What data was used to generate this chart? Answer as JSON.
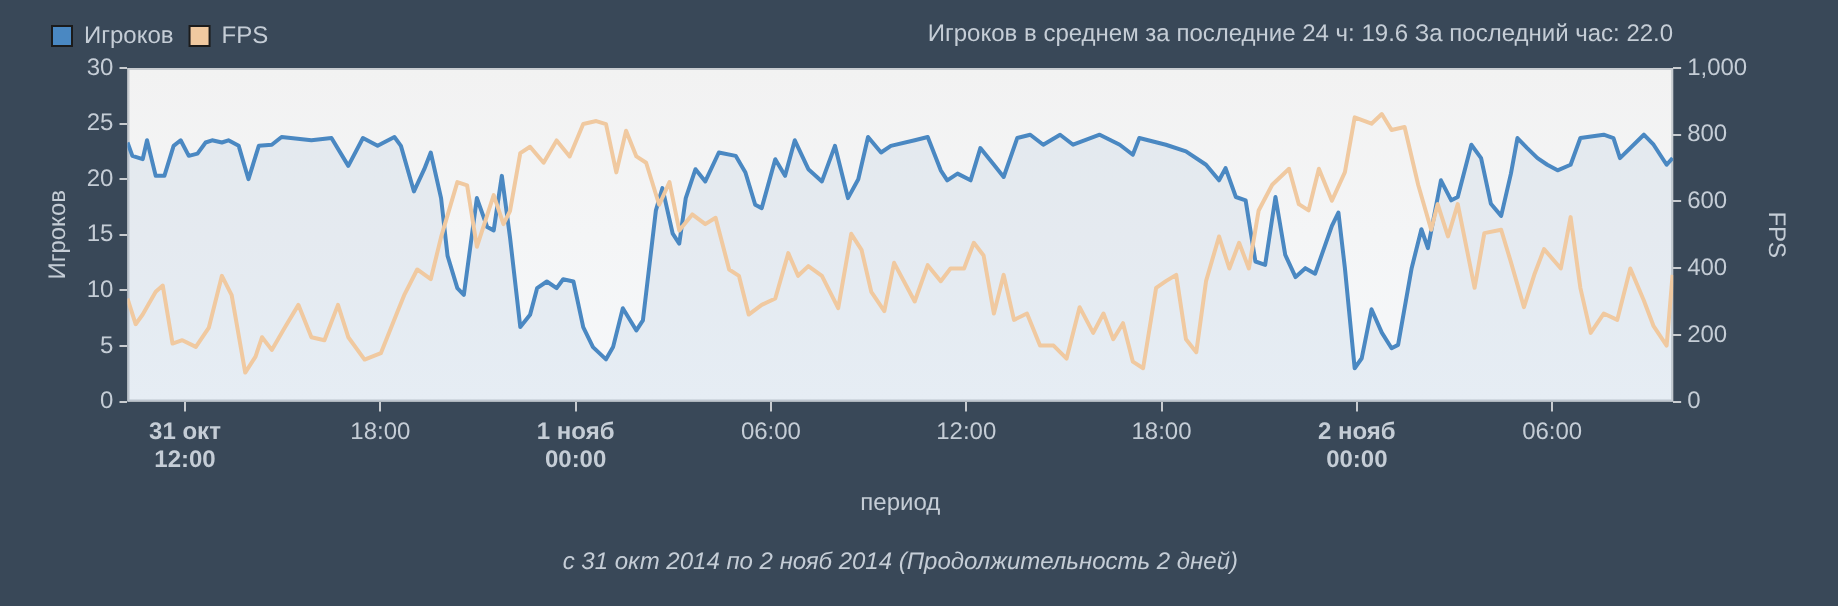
{
  "chart_data": {
    "type": "line",
    "xlabel": "период",
    "ylabel": "Игроков",
    "y2label": "FPS",
    "annotations": [
      "Игроков в среднем за последние 24 ч: 19.6 За последний час: 22.0",
      "с 31 окт 2014 по 2 нояб 2014 (Продолжительность 2 дней)"
    ],
    "xlim": [
      "2014-10-31T10:14",
      "2014-11-02T09:43"
    ],
    "xticks": [
      {
        "value": "2014-10-31T12:00",
        "label": "31 окт\n12:00"
      },
      {
        "value": "2014-10-31T18:00",
        "label": "18:00"
      },
      {
        "value": "2014-11-01T00:00",
        "label": "1 нояб\n00:00"
      },
      {
        "value": "2014-11-01T06:00",
        "label": "06:00"
      },
      {
        "value": "2014-11-01T12:00",
        "label": "12:00"
      },
      {
        "value": "2014-11-01T18:00",
        "label": "18:00"
      },
      {
        "value": "2014-11-02T00:00",
        "label": "2 нояб\n00:00"
      },
      {
        "value": "2014-11-02T06:00",
        "label": "06:00"
      }
    ],
    "ylim": [
      0,
      30
    ],
    "yticks": [
      0,
      5,
      10,
      15,
      20,
      25,
      30
    ],
    "y2lim": [
      0,
      1000
    ],
    "y2ticks": [
      0,
      200,
      400,
      600,
      800,
      {
        "value": 1000,
        "label": "1,000"
      }
    ],
    "legend": "top left",
    "grid": false,
    "marker": "none",
    "line_style": "solid",
    "series": [
      {
        "name": "Игроков",
        "type": "area",
        "color": "#4a88c2",
        "x": [
          "2014-10-31T10:14",
          "2014-10-31T10:23",
          "2014-10-31T10:42",
          "2014-10-31T10:50",
          "2014-10-31T11:06",
          "2014-10-31T11:22",
          "2014-10-31T11:39",
          "2014-10-31T11:52",
          "2014-10-31T12:07",
          "2014-10-31T12:23",
          "2014-10-31T12:38",
          "2014-10-31T12:50",
          "2014-10-31T13:08",
          "2014-10-31T13:20",
          "2014-10-31T13:39",
          "2014-10-31T13:57",
          "2014-10-31T14:16",
          "2014-10-31T14:40",
          "2014-10-31T14:58",
          "2014-10-31T15:53",
          "2014-10-31T16:30",
          "2014-10-31T17:01",
          "2014-10-31T17:28",
          "2014-10-31T17:55",
          "2014-10-31T18:26",
          "2014-10-31T18:38",
          "2014-10-31T19:02",
          "2014-10-31T19:21",
          "2014-10-31T19:33",
          "2014-10-31T19:52",
          "2014-10-31T20:04",
          "2014-10-31T20:22",
          "2014-10-31T20:34",
          "2014-10-31T20:58",
          "2014-10-31T21:17",
          "2014-10-31T21:29",
          "2014-10-31T21:44",
          "2014-10-31T21:59",
          "2014-10-31T22:18",
          "2014-10-31T22:36",
          "2014-10-31T22:49",
          "2014-10-31T23:07",
          "2014-10-31T23:25",
          "2014-10-31T23:37",
          "2014-10-31T23:56",
          "2014-11-01T00:14",
          "2014-11-01T00:32",
          "2014-11-01T00:56",
          "2014-11-01T01:09",
          "2014-11-01T01:27",
          "2014-11-01T01:52",
          "2014-11-01T02:04",
          "2014-11-01T02:28",
          "2014-11-01T02:40",
          "2014-11-01T02:59",
          "2014-11-01T03:11",
          "2014-11-01T03:23",
          "2014-11-01T03:41",
          "2014-11-01T03:59",
          "2014-11-01T04:24",
          "2014-11-01T04:55",
          "2014-11-01T05:13",
          "2014-11-01T05:31",
          "2014-11-01T05:43",
          "2014-11-01T06:08",
          "2014-11-01T06:26",
          "2014-11-01T06:44",
          "2014-11-01T07:09",
          "2014-11-01T07:34",
          "2014-11-01T07:58",
          "2014-11-01T08:22",
          "2014-11-01T08:41",
          "2014-11-01T08:59",
          "2014-11-01T09:23",
          "2014-11-01T09:41",
          "2014-11-01T10:25",
          "2014-11-01T10:49",
          "2014-11-01T11:13",
          "2014-11-01T11:25",
          "2014-11-01T11:44",
          "2014-11-01T12:08",
          "2014-11-01T12:26",
          "2014-11-01T12:51",
          "2014-11-01T13:09",
          "2014-11-01T13:34",
          "2014-11-01T13:58",
          "2014-11-01T14:22",
          "2014-11-01T14:53",
          "2014-11-01T15:17",
          "2014-11-01T16:06",
          "2014-11-01T16:43",
          "2014-11-01T17:07",
          "2014-11-01T17:19",
          "2014-11-01T18:08",
          "2014-11-01T18:45",
          "2014-11-01T19:22",
          "2014-11-01T19:46",
          "2014-11-01T19:58",
          "2014-11-01T20:17",
          "2014-11-01T20:35",
          "2014-11-01T20:53",
          "2014-11-01T21:11",
          "2014-11-01T21:30",
          "2014-11-01T21:48",
          "2014-11-01T22:07",
          "2014-11-01T22:25",
          "2014-11-01T22:43",
          "2014-11-01T23:14",
          "2014-11-01T23:26",
          "2014-11-01T23:38",
          "2014-11-01T23:56",
          "2014-11-02T00:09",
          "2014-11-02T00:27",
          "2014-11-02T00:46",
          "2014-11-02T01:04",
          "2014-11-02T01:16",
          "2014-11-02T01:41",
          "2014-11-02T01:59",
          "2014-11-02T02:11",
          "2014-11-02T02:35",
          "2014-11-02T02:54",
          "2014-11-02T03:06",
          "2014-11-02T03:31",
          "2014-11-02T03:49",
          "2014-11-02T04:07",
          "2014-11-02T04:26",
          "2014-11-02T04:44",
          "2014-11-02T04:56",
          "2014-11-02T05:14",
          "2014-11-02T05:33",
          "2014-11-02T05:51",
          "2014-11-02T06:10",
          "2014-11-02T06:34",
          "2014-11-02T06:52",
          "2014-11-02T07:35",
          "2014-11-02T07:53",
          "2014-11-02T08:05",
          "2014-11-02T08:49",
          "2014-11-02T09:07",
          "2014-11-02T09:31",
          "2014-11-02T09:42"
        ],
        "values": [
          23.3,
          22.1,
          21.8,
          23.5,
          20.3,
          20.3,
          23,
          23.5,
          22.1,
          22.3,
          23.3,
          23.5,
          23.3,
          23.5,
          23,
          20,
          23,
          23.1,
          23.8,
          23.5,
          23.7,
          21.2,
          23.7,
          23,
          23.8,
          23,
          18.9,
          20.9,
          22.4,
          18.3,
          13.1,
          10.2,
          9.6,
          18.3,
          15.7,
          15.4,
          20.3,
          14.8,
          6.7,
          7.8,
          10.2,
          10.8,
          10.2,
          11,
          10.8,
          6.7,
          4.9,
          3.8,
          4.9,
          8.4,
          6.4,
          7.3,
          17.2,
          19.2,
          15.1,
          14.2,
          18.3,
          20.9,
          19.8,
          22.4,
          22.1,
          20.6,
          17.7,
          17.4,
          21.8,
          20.3,
          23.5,
          20.9,
          19.8,
          23,
          18.3,
          20,
          23.8,
          22.4,
          23,
          23.5,
          23.8,
          20.8,
          19.9,
          20.5,
          19.9,
          22.8,
          21.3,
          20.2,
          23.7,
          24,
          23.1,
          24,
          23.1,
          24,
          23.1,
          22.2,
          23.7,
          23.1,
          22.5,
          21.3,
          19.9,
          21,
          18.4,
          18.1,
          12.6,
          12.3,
          18.4,
          13.2,
          11.2,
          12,
          11.5,
          15.8,
          17,
          12,
          3,
          3.9,
          8.3,
          6.2,
          4.8,
          5.1,
          12,
          15.5,
          13.8,
          19.9,
          18.1,
          18.4,
          23.1,
          21.9,
          17.8,
          16.7,
          20.5,
          23.7,
          22.8,
          21.9,
          21.3,
          20.8,
          21.3,
          23.7,
          24,
          23.7,
          21.9,
          24,
          23.1,
          21.3,
          21.9
        ]
      },
      {
        "name": "FPS",
        "axis": "y2",
        "color": "#f0c9a0",
        "x": [
          "2014-10-31T10:14",
          "2014-10-31T10:29",
          "2014-10-31T10:42",
          "2014-10-31T11:06",
          "2014-10-31T11:19",
          "2014-10-31T11:37",
          "2014-10-31T11:55",
          "2014-10-31T12:20",
          "2014-10-31T12:44",
          "2014-10-31T13:08",
          "2014-10-31T13:26",
          "2014-10-31T13:51",
          "2014-10-31T14:10",
          "2014-10-31T14:22",
          "2014-10-31T14:40",
          "2014-10-31T15:04",
          "2014-10-31T15:29",
          "2014-10-31T15:53",
          "2014-10-31T16:17",
          "2014-10-31T16:42",
          "2014-10-31T17:01",
          "2014-10-31T17:31",
          "2014-10-31T18:01",
          "2014-10-31T18:32",
          "2014-10-31T18:44",
          "2014-10-31T19:08",
          "2014-10-31T19:33",
          "2014-10-31T19:52",
          "2014-10-31T20:22",
          "2014-10-31T20:40",
          "2014-10-31T20:58",
          "2014-10-31T21:29",
          "2014-10-31T21:47",
          "2014-10-31T21:59",
          "2014-10-31T22:18",
          "2014-10-31T22:36",
          "2014-10-31T23:01",
          "2014-10-31T23:25",
          "2014-10-31T23:49",
          "2014-11-01T00:14",
          "2014-11-01T00:38",
          "2014-11-01T00:56",
          "2014-11-01T01:15",
          "2014-11-01T01:33",
          "2014-11-01T01:52",
          "2014-11-01T02:10",
          "2014-11-01T02:34",
          "2014-11-01T02:53",
          "2014-11-01T03:11",
          "2014-11-01T03:35",
          "2014-11-01T03:59",
          "2014-11-01T04:18",
          "2014-11-01T04:43",
          "2014-11-01T05:01",
          "2014-11-01T05:19",
          "2014-11-01T05:43",
          "2014-11-01T06:08",
          "2014-11-01T06:32",
          "2014-11-01T06:50",
          "2014-11-01T07:09",
          "2014-11-01T07:34",
          "2014-11-01T08:04",
          "2014-11-01T08:28",
          "2014-11-01T08:47",
          "2014-11-01T09:05",
          "2014-11-01T09:29",
          "2014-11-01T09:47",
          "2014-11-01T10:25",
          "2014-11-01T10:49",
          "2014-11-01T11:13",
          "2014-11-01T11:31",
          "2014-11-01T11:56",
          "2014-11-01T12:14",
          "2014-11-01T12:32",
          "2014-11-01T12:51",
          "2014-11-01T13:09",
          "2014-11-01T13:28",
          "2014-11-01T13:52",
          "2014-11-01T14:16",
          "2014-11-01T14:41",
          "2014-11-01T15:05",
          "2014-11-01T15:29",
          "2014-11-01T15:54",
          "2014-11-01T16:13",
          "2014-11-01T16:31",
          "2014-11-01T16:49",
          "2014-11-01T17:07",
          "2014-11-01T17:26",
          "2014-11-01T17:50",
          "2014-11-01T18:08",
          "2014-11-01T18:27",
          "2014-11-01T18:45",
          "2014-11-01T19:04",
          "2014-11-01T19:22",
          "2014-11-01T19:46",
          "2014-11-01T20:05",
          "2014-11-01T20:23",
          "2014-11-01T20:41",
          "2014-11-01T20:59",
          "2014-11-01T21:24",
          "2014-11-01T21:55",
          "2014-11-01T22:13",
          "2014-11-01T22:31",
          "2014-11-01T22:50",
          "2014-11-01T23:14",
          "2014-11-01T23:38",
          "2014-11-01T23:56",
          "2014-11-02T00:27",
          "2014-11-02T00:46",
          "2014-11-02T01:04",
          "2014-11-02T01:28",
          "2014-11-02T01:53",
          "2014-11-02T02:17",
          "2014-11-02T02:29",
          "2014-11-02T02:48",
          "2014-11-02T03:06",
          "2014-11-02T03:37",
          "2014-11-02T03:55",
          "2014-11-02T04:26",
          "2014-11-02T04:44",
          "2014-11-02T05:08",
          "2014-11-02T05:27",
          "2014-11-02T05:45",
          "2014-11-02T06:16",
          "2014-11-02T06:34",
          "2014-11-02T06:52",
          "2014-11-02T07:11",
          "2014-11-02T07:35",
          "2014-11-02T08:00",
          "2014-11-02T08:24",
          "2014-11-02T08:49",
          "2014-11-02T09:07",
          "2014-11-02T09:31",
          "2014-11-02T09:42"
        ],
        "values": [
          309,
          232,
          261,
          329,
          348,
          174,
          184,
          164,
          222,
          377,
          319,
          87,
          135,
          193,
          155,
          222,
          290,
          193,
          184,
          290,
          193,
          126,
          145,
          271,
          319,
          396,
          367,
          493,
          658,
          648,
          464,
          619,
          532,
          571,
          745,
          764,
          716,
          783,
          735,
          832,
          841,
          832,
          687,
          812,
          735,
          716,
          590,
          658,
          513,
          561,
          532,
          551,
          396,
          377,
          261,
          290,
          309,
          445,
          377,
          406,
          377,
          280,
          503,
          455,
          329,
          271,
          416,
          300,
          409,
          361,
          399,
          399,
          476,
          438,
          264,
          380,
          245,
          264,
          168,
          168,
          129,
          283,
          206,
          264,
          187,
          235,
          120,
          100,
          341,
          361,
          380,
          187,
          148,
          361,
          495,
          399,
          476,
          399,
          573,
          650,
          698,
          592,
          573,
          698,
          602,
          688,
          852,
          833,
          862,
          814,
          823,
          650,
          515,
          592,
          495,
          592,
          341,
          505,
          515,
          418,
          283,
          380,
          457,
          399,
          553,
          341,
          206,
          264,
          245,
          399,
          303,
          226,
          168,
          380
        ]
      }
    ]
  }
}
